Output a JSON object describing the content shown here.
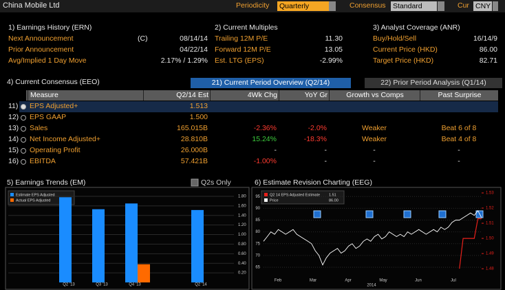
{
  "header": {
    "title": "China Mobile Ltd",
    "periodicity_label": "Periodicity",
    "periodicity": "Quarterly",
    "consensus_label": "Consensus",
    "consensus": "Standard",
    "currency_label": "Cur",
    "currency": "CNY"
  },
  "sections": [
    {
      "title": "1) Earnings History (ERN)",
      "rows": [
        [
          "Next Announcement",
          "(C)",
          "08/14/14"
        ],
        [
          "Prior Announcement",
          "04/22/14"
        ],
        [
          "Avg/Implied 1 Day Move",
          "2.17% / 1.29%"
        ]
      ]
    },
    {
      "title": "2) Current Multiples",
      "rows": [
        [
          "Trailing 12M P/E",
          "11.30"
        ],
        [
          "Forward 12M P/E",
          "13.05"
        ],
        [
          "Est. LTG (EPS)",
          "-2.99%"
        ]
      ]
    },
    {
      "title": "3) Analyst Coverage (ANR)",
      "rows": [
        [
          "Buy/Hold/Sell",
          "16/14/9"
        ],
        [
          "Current Price (HKD)",
          "86.00"
        ],
        [
          "Target Price (HKD)",
          "82.71"
        ]
      ]
    }
  ],
  "consensus": {
    "title": "4) Current Consensus (EEO)",
    "tabs": [
      "21) Current Period Overview (Q2/14)",
      "22) Prior Period Analysis (Q1/14)"
    ],
    "columns": [
      "Measure",
      "Q2/14 Est",
      "4Wk Chg",
      "YoY Gr",
      "Growth vs Comps",
      "Past Surprise"
    ],
    "rows": [
      [
        "11)",
        "EPS Adjusted+",
        "1.513"
      ],
      [
        "12)",
        "EPS GAAP",
        "1.500"
      ],
      [
        "13)",
        "Sales",
        "165.015B",
        "-2.36%",
        "-2.0%",
        "Weaker",
        "Beat 6 of 8"
      ],
      [
        "14)",
        "Net Income Adjusted+",
        "28.810B",
        "15.24%",
        "-18.3%",
        "Weaker",
        "Beat 4 of 8"
      ],
      [
        "15)",
        "Operating Profit",
        "26.000B",
        "-",
        "-",
        "-",
        "-"
      ],
      [
        "16)",
        "EBITDA",
        "57.421B",
        "-1.00%",
        "-",
        "-",
        "-"
      ]
    ]
  },
  "chart_data": [
    {
      "type": "bar",
      "title": "5) Earnings Trends (EM)",
      "toggle_label": "Q2s Only",
      "categories": [
        "Q2 '13",
        "Q3 '13",
        "Q4 '13",
        null,
        "Q2 '14"
      ],
      "series": [
        {
          "name": "Estimate EPS Adjusted",
          "color": "#1a8cff",
          "values": [
            1.78,
            1.53,
            1.65,
            null,
            1.513
          ]
        },
        {
          "name": "Actual EPS Adjusted",
          "color": "#ff6a00",
          "values": [
            null,
            null,
            0.38,
            null,
            null
          ]
        }
      ],
      "ylim": [
        0,
        1.9
      ],
      "yticks": [
        {
          "value": 0.2,
          "label": "0.20"
        },
        {
          "value": 0.4,
          "label": "0.40"
        },
        {
          "value": 0.6,
          "label": "0.60"
        },
        {
          "value": 0.8,
          "label": "0.80"
        },
        {
          "value": 1.0,
          "label": "1.00"
        },
        {
          "value": 1.2,
          "label": "1.20"
        },
        {
          "value": 1.4,
          "label": "1.40"
        },
        {
          "value": 1.6,
          "label": "1.60"
        },
        {
          "value": 1.8,
          "label": "1.80"
        }
      ],
      "grid": true
    },
    {
      "type": "line",
      "title": "6) Estimate Revision Charting (EEG)",
      "x_labels": [
        "Feb",
        "Mar",
        "Apr",
        "May",
        "Jun",
        "Jul"
      ],
      "x_group_label": "2014",
      "series": [
        {
          "name": "Q2 14 EPS Adjusted Estimate",
          "last_label": "1.51",
          "color": "#e8201a",
          "axis": "y2",
          "values": [
            null,
            null,
            null,
            null,
            null,
            null,
            null,
            null,
            null,
            null,
            null,
            null,
            null,
            null,
            null,
            null,
            null,
            null,
            null,
            null,
            null,
            null,
            null,
            null,
            null,
            null,
            null,
            null,
            null,
            null,
            null,
            null,
            null,
            null,
            null,
            null,
            null,
            null,
            null,
            null,
            null,
            null,
            null,
            null,
            null,
            null,
            null,
            null,
            null,
            null,
            null,
            null,
            null,
            1.48,
            1.5,
            1.5,
            1.5,
            1.5,
            1.513,
            1.513
          ]
        },
        {
          "name": "Price",
          "last_label": "86.00",
          "color": "#ffffff",
          "values": [
            76,
            78,
            80,
            79,
            81,
            80,
            79,
            80,
            81,
            79,
            78,
            77,
            76,
            75,
            72,
            70,
            66,
            69,
            71,
            72,
            73,
            71,
            72,
            74,
            75,
            73,
            74,
            76,
            77,
            76,
            78,
            79,
            77,
            78,
            80,
            79,
            78,
            79,
            78,
            80,
            79,
            80,
            81,
            80,
            79,
            80,
            81,
            80,
            82,
            81,
            82,
            84,
            85,
            85,
            86,
            87,
            88,
            87,
            89,
            86
          ]
        }
      ],
      "ylim": [
        61.5,
        98
      ],
      "yticks": [
        65,
        70,
        75,
        80,
        85,
        90,
        95
      ],
      "y2lim": [
        1.4755,
        1.5323
      ],
      "y2ticks": [
        1.48,
        1.49,
        {
          "value": 1.5,
          "label": "1.50"
        },
        1.51,
        1.52,
        1.53
      ],
      "grid": true
    }
  ]
}
